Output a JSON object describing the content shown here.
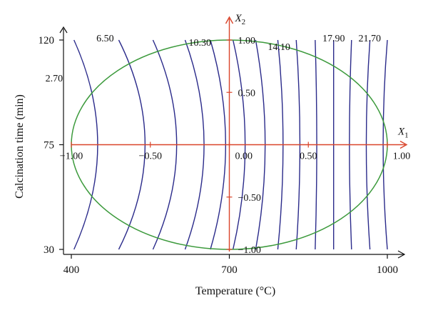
{
  "chart_data": {
    "type": "contour",
    "xlabel": "Temperature (°C)",
    "ylabel": "Calcination time (min)",
    "x_ticks": [
      "400",
      "700",
      "1000"
    ],
    "x_tick_values": [
      400,
      700,
      1000
    ],
    "y_ticks": [
      "30",
      "75",
      "120"
    ],
    "y_tick_values": [
      30,
      75,
      120
    ],
    "xlim": [
      400,
      1000
    ],
    "ylim": [
      30,
      120
    ],
    "coded_axes": {
      "x_label": "X",
      "x_subscript": "1",
      "y_label": "X",
      "y_subscript": "2",
      "x_ticks": [
        "−1.00",
        "−0.50",
        "0.00",
        "0.50",
        "1.00"
      ],
      "x_tick_values": [
        -1.0,
        -0.5,
        0.0,
        0.5,
        1.0
      ],
      "y_ticks": [
        "−1.00",
        "−0.50",
        "0.50",
        "1.00"
      ],
      "y_tick_values": [
        -1.0,
        -0.5,
        0.5,
        1.0
      ],
      "color": "#d9442a"
    },
    "region": {
      "shape": "ellipse",
      "center": [
        700,
        75
      ],
      "color": "#3c9a3c"
    },
    "contour_color": "#2a2a8a",
    "contour_levels_labeled": [
      "2.70",
      "6.50",
      "10.30",
      "14.10",
      "17.90",
      "21.70"
    ],
    "contour_level_values": [
      2.7,
      6.5,
      10.3,
      14.1,
      17.9,
      21.7
    ],
    "contours": [
      {
        "x_mid": 450,
        "x_ends": 405,
        "label": "2.70"
      },
      {
        "x_mid": 540,
        "x_ends": 490,
        "label": "6.50"
      },
      {
        "x_mid": 600,
        "x_ends": 555,
        "label": ""
      },
      {
        "x_mid": 652,
        "x_ends": 616,
        "label": ""
      },
      {
        "x_mid": 693,
        "x_ends": 664,
        "label": "10.30"
      },
      {
        "x_mid": 730,
        "x_ends": 707,
        "label": ""
      },
      {
        "x_mid": 768,
        "x_ends": 750,
        "label": ""
      },
      {
        "x_mid": 802,
        "x_ends": 792,
        "label": "14.10"
      },
      {
        "x_mid": 834,
        "x_ends": 827,
        "label": ""
      },
      {
        "x_mid": 866,
        "x_ends": 863,
        "label": ""
      },
      {
        "x_mid": 898,
        "x_ends": 898,
        "label": "17.90"
      },
      {
        "x_mid": 928,
        "x_ends": 932,
        "label": ""
      },
      {
        "x_mid": 960,
        "x_ends": 967,
        "label": "21.70"
      },
      {
        "x_mid": 992,
        "x_ends": 1000,
        "label": ""
      }
    ]
  }
}
